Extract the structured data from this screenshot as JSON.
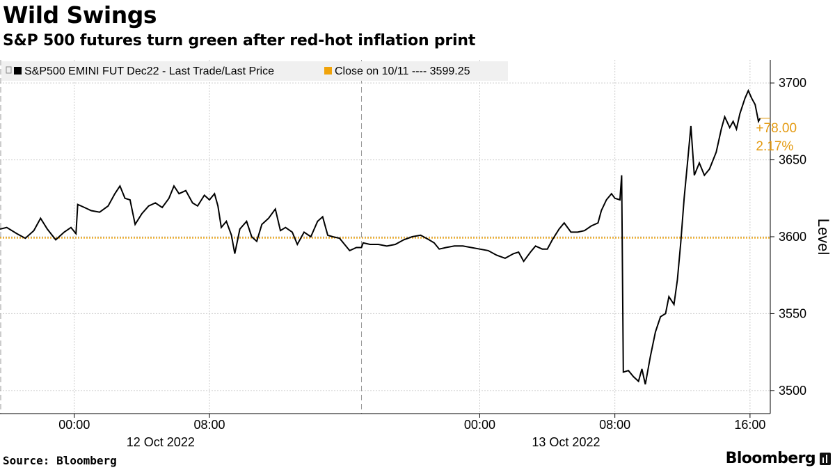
{
  "title": "Wild Swings",
  "subtitle": "S&P 500 futures turn green after red-hot inflation print",
  "source": "Source: Bloomberg",
  "brand": "Bloomberg",
  "brand_icon": "bloomberg-chart-icon",
  "colors": {
    "series": "#000000",
    "reference": "#f0a30a",
    "annotation": "#e49a10",
    "grid": "#cccccc"
  },
  "chart_data": {
    "type": "line",
    "ylabel": "Level",
    "ylim": [
      3485,
      3715
    ],
    "yticks": [
      3500,
      3550,
      3600,
      3650,
      3700
    ],
    "ytick_labels": [
      "3500",
      "3550",
      "3600",
      "3650",
      "3700"
    ],
    "x_unit": "hours since 2022-10-11 00:00",
    "xlim": [
      19.6,
      65.2
    ],
    "xticks": [
      {
        "x": 24,
        "label": "00:00",
        "date_label": "12 Oct 2022"
      },
      {
        "x": 32,
        "label": "08:00",
        "date_label": ""
      },
      {
        "x": 48,
        "label": "00:00",
        "date_label": "13 Oct 2022"
      },
      {
        "x": 56,
        "label": "08:00",
        "date_label": ""
      },
      {
        "x": 64,
        "label": "16:00",
        "date_label": ""
      }
    ],
    "session_breaks": [
      19.6,
      41.0
    ],
    "legend": [
      {
        "name": "S&P500 EMINI FUT  Dec22 - Last Trade/Last Price",
        "color": "#000000"
      },
      {
        "name": "Close on 10/11 ---- 3599.25",
        "color": "#f0a30a"
      }
    ],
    "reference_line": {
      "value": 3599.25
    },
    "last_point_annotation": {
      "change": "+78.00",
      "percent": "2.17%"
    },
    "series": [
      {
        "name": "S&P500 EMINI FUT  Dec22 - Last Trade/Last Price",
        "points": [
          [
            19.6,
            3605
          ],
          [
            20.0,
            3606
          ],
          [
            20.6,
            3602
          ],
          [
            21.1,
            3599
          ],
          [
            21.6,
            3604
          ],
          [
            22.0,
            3612
          ],
          [
            22.4,
            3605
          ],
          [
            22.9,
            3598
          ],
          [
            23.4,
            3603
          ],
          [
            23.8,
            3606
          ],
          [
            24.1,
            3602
          ],
          [
            24.2,
            3621
          ],
          [
            24.6,
            3619
          ],
          [
            25.0,
            3617
          ],
          [
            25.5,
            3616
          ],
          [
            26.0,
            3620
          ],
          [
            26.4,
            3628
          ],
          [
            26.7,
            3633
          ],
          [
            27.0,
            3625
          ],
          [
            27.3,
            3624
          ],
          [
            27.6,
            3608
          ],
          [
            28.0,
            3615
          ],
          [
            28.4,
            3620
          ],
          [
            28.8,
            3622
          ],
          [
            29.2,
            3619
          ],
          [
            29.6,
            3625
          ],
          [
            29.9,
            3633
          ],
          [
            30.2,
            3628
          ],
          [
            30.6,
            3630
          ],
          [
            31.0,
            3622
          ],
          [
            31.3,
            3620
          ],
          [
            31.7,
            3627
          ],
          [
            32.0,
            3624
          ],
          [
            32.3,
            3628
          ],
          [
            32.5,
            3620
          ],
          [
            32.7,
            3606
          ],
          [
            33.0,
            3610
          ],
          [
            33.3,
            3601
          ],
          [
            33.5,
            3589
          ],
          [
            33.8,
            3605
          ],
          [
            34.2,
            3610
          ],
          [
            34.5,
            3600
          ],
          [
            34.8,
            3597
          ],
          [
            35.1,
            3608
          ],
          [
            35.5,
            3612
          ],
          [
            35.9,
            3618
          ],
          [
            36.2,
            3604
          ],
          [
            36.5,
            3606
          ],
          [
            36.9,
            3603
          ],
          [
            37.2,
            3595
          ],
          [
            37.6,
            3603
          ],
          [
            38.0,
            3600
          ],
          [
            38.4,
            3610
          ],
          [
            38.7,
            3613
          ],
          [
            39.0,
            3601
          ],
          [
            39.3,
            3600
          ],
          [
            39.7,
            3599
          ],
          [
            40.0,
            3595
          ],
          [
            40.3,
            3591
          ],
          [
            40.7,
            3593
          ],
          [
            41.0,
            3593
          ],
          [
            41.1,
            3596
          ],
          [
            41.5,
            3595
          ],
          [
            42.0,
            3595
          ],
          [
            42.5,
            3594
          ],
          [
            43.0,
            3595
          ],
          [
            43.5,
            3598
          ],
          [
            44.0,
            3600
          ],
          [
            44.5,
            3601
          ],
          [
            45.0,
            3598
          ],
          [
            45.3,
            3596
          ],
          [
            45.6,
            3592
          ],
          [
            46.0,
            3593
          ],
          [
            46.5,
            3594
          ],
          [
            47.0,
            3594
          ],
          [
            47.5,
            3593
          ],
          [
            48.0,
            3592
          ],
          [
            48.5,
            3591
          ],
          [
            49.0,
            3588
          ],
          [
            49.5,
            3586
          ],
          [
            50.0,
            3589
          ],
          [
            50.3,
            3590
          ],
          [
            50.6,
            3584
          ],
          [
            51.0,
            3590
          ],
          [
            51.3,
            3594
          ],
          [
            51.7,
            3592
          ],
          [
            52.0,
            3592
          ],
          [
            52.3,
            3598
          ],
          [
            52.7,
            3605
          ],
          [
            53.0,
            3609
          ],
          [
            53.4,
            3603
          ],
          [
            53.8,
            3603
          ],
          [
            54.2,
            3604
          ],
          [
            54.6,
            3607
          ],
          [
            55.0,
            3609
          ],
          [
            55.2,
            3617
          ],
          [
            55.5,
            3624
          ],
          [
            55.8,
            3628
          ],
          [
            56.0,
            3625
          ],
          [
            56.3,
            3624
          ],
          [
            56.4,
            3640
          ],
          [
            56.5,
            3512
          ],
          [
            56.8,
            3513
          ],
          [
            57.1,
            3509
          ],
          [
            57.4,
            3506
          ],
          [
            57.6,
            3514
          ],
          [
            57.8,
            3504
          ],
          [
            58.1,
            3522
          ],
          [
            58.4,
            3538
          ],
          [
            58.7,
            3548
          ],
          [
            59.0,
            3550
          ],
          [
            59.2,
            3561
          ],
          [
            59.5,
            3556
          ],
          [
            59.7,
            3572
          ],
          [
            59.9,
            3596
          ],
          [
            60.1,
            3625
          ],
          [
            60.3,
            3648
          ],
          [
            60.5,
            3672
          ],
          [
            60.7,
            3640
          ],
          [
            61.0,
            3648
          ],
          [
            61.3,
            3640
          ],
          [
            61.6,
            3644
          ],
          [
            62.0,
            3655
          ],
          [
            62.3,
            3670
          ],
          [
            62.5,
            3678
          ],
          [
            62.8,
            3671
          ],
          [
            63.0,
            3675
          ],
          [
            63.2,
            3670
          ],
          [
            63.4,
            3680
          ],
          [
            63.7,
            3690
          ],
          [
            63.9,
            3695
          ],
          [
            64.1,
            3690
          ],
          [
            64.3,
            3686
          ],
          [
            64.5,
            3675
          ],
          [
            64.6,
            3677
          ]
        ]
      }
    ]
  }
}
